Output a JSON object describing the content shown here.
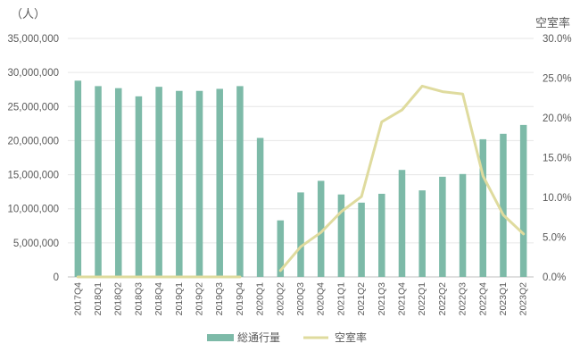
{
  "chart_data": {
    "type": "bar+line",
    "categories": [
      "2017Q4",
      "2018Q1",
      "2018Q2",
      "2018Q3",
      "2018Q4",
      "2019Q1",
      "2019Q2",
      "2019Q3",
      "2019Q4",
      "2020Q1",
      "2020Q2",
      "2020Q3",
      "2020Q4",
      "2021Q1",
      "2021Q2",
      "2021Q3",
      "2021Q4",
      "2022Q1",
      "2022Q2",
      "2022Q3",
      "2022Q4",
      "2023Q1",
      "2023Q2"
    ],
    "series": [
      {
        "name": "総通行量",
        "type": "bar",
        "axis": "left",
        "color": "#7dbaa8",
        "values": [
          28800000,
          28000000,
          27700000,
          26500000,
          27900000,
          27300000,
          27300000,
          27600000,
          28000000,
          20400000,
          8300000,
          12400000,
          14100000,
          12100000,
          10900000,
          12200000,
          15700000,
          12700000,
          14700000,
          15100000,
          20200000,
          21000000,
          22300000
        ]
      },
      {
        "name": "空室率",
        "type": "line",
        "axis": "right",
        "color": "#dfdb9e",
        "values": [
          0.0,
          0.0,
          0.0,
          0.0,
          0.0,
          0.0,
          0.0,
          0.0,
          0.0,
          null,
          0.8,
          3.8,
          5.6,
          8.2,
          10.1,
          19.5,
          21.0,
          24.0,
          23.3,
          23.0,
          12.7,
          7.8,
          5.4
        ]
      }
    ],
    "left_axis": {
      "unit_label": "（人）",
      "min": 0,
      "max": 35000000,
      "ticks": [
        "0",
        "5,000,000",
        "10,000,000",
        "15,000,000",
        "20,000,000",
        "25,000,000",
        "30,000,000",
        "35,000,000"
      ]
    },
    "right_axis": {
      "unit_label": "空室率",
      "min": 0,
      "max": 30,
      "ticks": [
        "0.0%",
        "5.0%",
        "10.0%",
        "15.0%",
        "20.0%",
        "25.0%",
        "30.0%"
      ]
    },
    "grid": true,
    "legend_position": "bottom"
  }
}
